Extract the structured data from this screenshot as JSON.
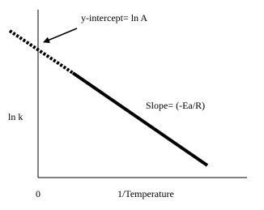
{
  "annotations": {
    "intercept": "y-intercept= ln A",
    "slope": "Slope= (-Ea/R)"
  },
  "axes": {
    "y_label": "ln k",
    "x_origin": "0",
    "x_label": "1/Temperature"
  }
}
